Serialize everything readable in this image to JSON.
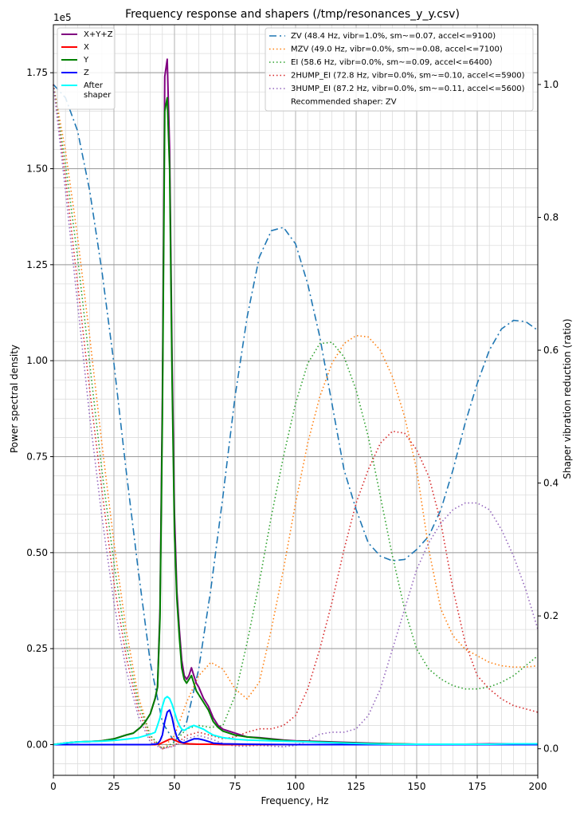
{
  "chart_data": {
    "type": "line",
    "title": "Frequency response and shapers (/tmp/resonances_y_y.csv)",
    "xlabel": "Frequency, Hz",
    "ylabel": "Power spectral density",
    "y2label": "Shaper vibration reduction (ratio)",
    "y_multiplier": "1e5",
    "xlim": [
      0,
      200
    ],
    "ylim": [
      -0.08,
      1.875
    ],
    "y2lim": [
      -0.04,
      1.09
    ],
    "x_ticks": [
      "0",
      "25",
      "50",
      "75",
      "100",
      "125",
      "150",
      "175",
      "200"
    ],
    "y_ticks": [
      "0.00",
      "0.25",
      "0.50",
      "0.75",
      "1.00",
      "1.25",
      "1.50",
      "1.75"
    ],
    "y2_ticks": [
      "0.0",
      "0.2",
      "0.4",
      "0.6",
      "0.8",
      "1.0"
    ],
    "grid": true,
    "left_legend": {
      "placement": "top-left",
      "entries": [
        {
          "name": "X+Y+Z",
          "color": "#800080",
          "style": "solid"
        },
        {
          "name": "X",
          "color": "#ff0000",
          "style": "solid"
        },
        {
          "name": "Y",
          "color": "#008000",
          "style": "solid"
        },
        {
          "name": "Z",
          "color": "#0000ff",
          "style": "solid"
        },
        {
          "name_lines": [
            "After",
            "shaper"
          ],
          "color": "#00ffff",
          "style": "solid"
        }
      ]
    },
    "right_legend": {
      "placement": "top-right",
      "entries": [
        {
          "name": "ZV (48.4 Hz, vibr=1.0%, sm~=0.07, accel<=9100)",
          "color": "#1f77b4",
          "style": "dashdot"
        },
        {
          "name": "MZV (49.0 Hz, vibr=0.0%, sm~=0.08, accel<=7100)",
          "color": "#ff7f0e",
          "style": "dotted"
        },
        {
          "name": "EI (58.6 Hz, vibr=0.0%, sm~=0.09, accel<=6400)",
          "color": "#2ca02c",
          "style": "dotted"
        },
        {
          "name": "2HUMP_EI (72.8 Hz, vibr=0.0%, sm~=0.10, accel<=5900)",
          "color": "#d62728",
          "style": "dotted"
        },
        {
          "name": "3HUMP_EI (87.2 Hz, vibr=0.0%, sm~=0.11, accel<=5600)",
          "color": "#9467bd",
          "style": "dotted"
        }
      ],
      "note": "Recommended shaper: ZV"
    },
    "psd_series": [
      {
        "name": "X+Y+Z",
        "color": "#800080",
        "width": 2,
        "x": [
          0,
          6,
          10,
          15,
          20,
          25,
          30,
          33,
          36,
          38,
          40,
          42,
          43,
          44,
          45,
          46,
          47,
          48,
          49,
          50,
          51,
          52,
          53,
          54,
          55,
          56,
          57,
          58,
          59,
          60,
          62,
          64,
          66,
          68,
          70,
          75,
          80,
          85,
          90,
          95,
          100,
          110,
          120,
          130,
          140,
          150,
          160,
          170,
          180,
          190,
          200
        ],
        "y": [
          0,
          0.005,
          0.007,
          0.008,
          0.01,
          0.015,
          0.025,
          0.03,
          0.045,
          0.06,
          0.08,
          0.12,
          0.15,
          0.35,
          0.9,
          1.74,
          1.785,
          1.55,
          1.0,
          0.6,
          0.4,
          0.3,
          0.22,
          0.18,
          0.17,
          0.18,
          0.2,
          0.18,
          0.16,
          0.15,
          0.12,
          0.1,
          0.07,
          0.05,
          0.04,
          0.03,
          0.02,
          0.018,
          0.015,
          0.012,
          0.01,
          0.008,
          0.006,
          0.004,
          0.002,
          0.001,
          0.001,
          0.001,
          0.002,
          0.002,
          0.002
        ]
      },
      {
        "name": "X",
        "color": "#ff0000",
        "width": 2,
        "x": [
          0,
          42,
          44,
          46,
          48,
          49,
          50,
          52,
          54,
          56,
          60,
          65,
          70,
          80,
          100,
          200
        ],
        "y": [
          0,
          0,
          0.002,
          0.008,
          0.014,
          0.015,
          0.012,
          0.006,
          0.003,
          0.002,
          0.001,
          0.001,
          0.0,
          0.0,
          0.0,
          0.0
        ]
      },
      {
        "name": "Y",
        "color": "#008000",
        "width": 2,
        "x": [
          0,
          6,
          10,
          15,
          20,
          25,
          30,
          33,
          36,
          38,
          40,
          42,
          43,
          44,
          45,
          46,
          47,
          48,
          49,
          50,
          51,
          52,
          53,
          54,
          55,
          56,
          57,
          58,
          59,
          60,
          62,
          64,
          66,
          68,
          70,
          75,
          80,
          85,
          90,
          95,
          100,
          110,
          120,
          130,
          140,
          150,
          160,
          170,
          180,
          190,
          200
        ],
        "y": [
          0,
          0.005,
          0.007,
          0.008,
          0.01,
          0.015,
          0.025,
          0.03,
          0.045,
          0.06,
          0.08,
          0.12,
          0.15,
          0.33,
          0.85,
          1.65,
          1.685,
          1.5,
          0.95,
          0.55,
          0.38,
          0.28,
          0.2,
          0.17,
          0.16,
          0.17,
          0.18,
          0.16,
          0.14,
          0.13,
          0.11,
          0.09,
          0.06,
          0.045,
          0.035,
          0.025,
          0.02,
          0.017,
          0.014,
          0.011,
          0.009,
          0.007,
          0.005,
          0.003,
          0.002,
          0.001,
          0.001,
          0.001,
          0.001,
          0.001,
          0.001
        ]
      },
      {
        "name": "Z",
        "color": "#0000ff",
        "width": 2,
        "x": [
          0,
          40,
          43,
          44,
          45,
          46,
          47,
          48,
          49,
          50,
          51,
          52,
          53,
          54,
          56,
          58,
          60,
          62,
          64,
          66,
          70,
          80,
          100,
          150,
          200
        ],
        "y": [
          0,
          0.0,
          0.002,
          0.01,
          0.025,
          0.06,
          0.085,
          0.09,
          0.07,
          0.04,
          0.02,
          0.01,
          0.006,
          0.005,
          0.01,
          0.015,
          0.015,
          0.012,
          0.008,
          0.004,
          0.002,
          0.001,
          0.0,
          0.0,
          0.0
        ]
      },
      {
        "name": "After shaper",
        "color": "#00ffff",
        "width": 2,
        "x": [
          0,
          6,
          10,
          15,
          20,
          25,
          30,
          35,
          40,
          42,
          43,
          44,
          45,
          46,
          47,
          48,
          49,
          50,
          51,
          52,
          53,
          54,
          56,
          58,
          60,
          62,
          64,
          66,
          70,
          75,
          80,
          90,
          100,
          110,
          120,
          130,
          140,
          150,
          160,
          170,
          180,
          190,
          200
        ],
        "y": [
          0,
          0.005,
          0.007,
          0.008,
          0.009,
          0.011,
          0.014,
          0.018,
          0.027,
          0.032,
          0.05,
          0.07,
          0.1,
          0.12,
          0.125,
          0.12,
          0.105,
          0.085,
          0.065,
          0.05,
          0.04,
          0.037,
          0.045,
          0.05,
          0.045,
          0.04,
          0.032,
          0.025,
          0.018,
          0.014,
          0.012,
          0.01,
          0.008,
          0.006,
          0.004,
          0.002,
          0.001,
          0.001,
          0.001,
          0.001,
          0.001,
          0.002,
          0.002
        ]
      }
    ],
    "shaper_series": [
      {
        "name": "ZV",
        "color": "#1f77b4",
        "dash": "dashdot",
        "x": [
          0,
          5,
          10,
          15,
          20,
          25,
          30,
          35,
          40,
          45,
          50,
          55,
          60,
          65,
          70,
          75,
          80,
          85,
          90,
          95,
          100,
          105,
          110,
          115,
          120,
          125,
          130,
          135,
          140,
          145,
          150,
          155,
          160,
          165,
          170,
          175,
          180,
          185,
          190,
          195,
          200
        ],
        "y": [
          1.0,
          0.98,
          0.93,
          0.84,
          0.72,
          0.58,
          0.42,
          0.27,
          0.13,
          0.04,
          0.01,
          0.04,
          0.12,
          0.24,
          0.38,
          0.53,
          0.65,
          0.74,
          0.78,
          0.785,
          0.76,
          0.7,
          0.62,
          0.52,
          0.42,
          0.36,
          0.31,
          0.29,
          0.283,
          0.285,
          0.3,
          0.32,
          0.36,
          0.42,
          0.49,
          0.55,
          0.6,
          0.632,
          0.645,
          0.643,
          0.63
        ]
      },
      {
        "name": "MZV",
        "color": "#ff7f0e",
        "dash": "dotted",
        "x": [
          0,
          5,
          10,
          15,
          20,
          25,
          30,
          35,
          40,
          45,
          50,
          55,
          60,
          65,
          70,
          75,
          80,
          85,
          90,
          95,
          100,
          105,
          110,
          115,
          120,
          125,
          130,
          135,
          140,
          145,
          150,
          155,
          160,
          165,
          170,
          175,
          180,
          185,
          190,
          195,
          200
        ],
        "y": [
          1.0,
          0.9,
          0.77,
          0.62,
          0.46,
          0.31,
          0.18,
          0.08,
          0.02,
          0.0,
          0.02,
          0.07,
          0.11,
          0.13,
          0.12,
          0.09,
          0.075,
          0.1,
          0.18,
          0.27,
          0.37,
          0.46,
          0.53,
          0.58,
          0.61,
          0.622,
          0.62,
          0.6,
          0.56,
          0.5,
          0.42,
          0.3,
          0.21,
          0.17,
          0.15,
          0.14,
          0.13,
          0.125,
          0.123,
          0.123,
          0.125
        ]
      },
      {
        "name": "EI",
        "color": "#2ca02c",
        "dash": "dotted",
        "x": [
          0,
          5,
          10,
          15,
          20,
          25,
          30,
          35,
          40,
          45,
          50,
          55,
          60,
          65,
          70,
          75,
          80,
          85,
          90,
          95,
          100,
          105,
          110,
          115,
          120,
          125,
          130,
          135,
          140,
          145,
          150,
          155,
          160,
          165,
          170,
          175,
          180,
          185,
          190,
          195,
          200
        ],
        "y": [
          1.0,
          0.88,
          0.74,
          0.58,
          0.42,
          0.28,
          0.16,
          0.07,
          0.02,
          0.0,
          0.01,
          0.03,
          0.035,
          0.032,
          0.035,
          0.08,
          0.16,
          0.25,
          0.35,
          0.44,
          0.52,
          0.58,
          0.61,
          0.612,
          0.59,
          0.54,
          0.47,
          0.38,
          0.29,
          0.21,
          0.15,
          0.12,
          0.105,
          0.095,
          0.09,
          0.09,
          0.093,
          0.1,
          0.11,
          0.125,
          0.14
        ]
      },
      {
        "name": "2HUMP_EI",
        "color": "#d62728",
        "dash": "dotted",
        "x": [
          0,
          5,
          10,
          15,
          20,
          25,
          30,
          35,
          40,
          45,
          50,
          55,
          60,
          65,
          70,
          75,
          80,
          85,
          90,
          95,
          100,
          105,
          110,
          115,
          120,
          125,
          130,
          135,
          140,
          145,
          150,
          155,
          160,
          165,
          170,
          175,
          180,
          185,
          190,
          195,
          200
        ],
        "y": [
          1.0,
          0.86,
          0.7,
          0.54,
          0.39,
          0.25,
          0.14,
          0.06,
          0.015,
          0.0,
          0.005,
          0.02,
          0.025,
          0.02,
          0.015,
          0.018,
          0.025,
          0.03,
          0.03,
          0.035,
          0.05,
          0.09,
          0.15,
          0.22,
          0.3,
          0.37,
          0.42,
          0.46,
          0.478,
          0.475,
          0.45,
          0.41,
          0.34,
          0.24,
          0.16,
          0.11,
          0.09,
          0.075,
          0.065,
          0.06,
          0.055
        ]
      },
      {
        "name": "3HUMP_EI",
        "color": "#9467bd",
        "dash": "dotted",
        "x": [
          0,
          5,
          10,
          15,
          20,
          25,
          30,
          35,
          40,
          45,
          50,
          55,
          60,
          65,
          70,
          75,
          80,
          85,
          90,
          95,
          100,
          105,
          110,
          115,
          120,
          125,
          130,
          135,
          140,
          145,
          150,
          155,
          160,
          165,
          170,
          175,
          180,
          185,
          190,
          195,
          200
        ],
        "y": [
          1.0,
          0.84,
          0.67,
          0.5,
          0.35,
          0.22,
          0.12,
          0.05,
          0.01,
          0.0,
          0.004,
          0.015,
          0.02,
          0.015,
          0.008,
          0.004,
          0.004,
          0.005,
          0.004,
          0.003,
          0.005,
          0.012,
          0.022,
          0.025,
          0.025,
          0.03,
          0.05,
          0.09,
          0.15,
          0.21,
          0.27,
          0.31,
          0.34,
          0.36,
          0.37,
          0.37,
          0.36,
          0.33,
          0.29,
          0.24,
          0.18
        ]
      }
    ]
  }
}
